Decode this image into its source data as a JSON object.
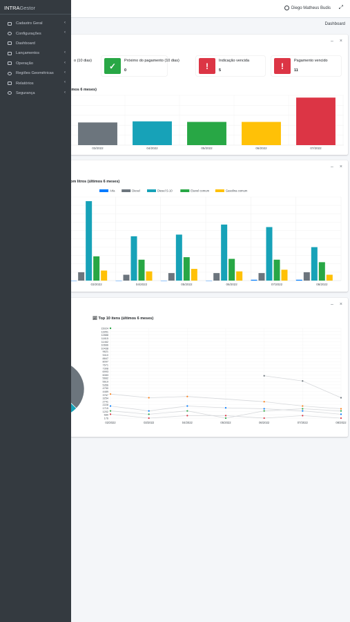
{
  "brand": {
    "bold": "INTRA",
    "light": "Gestor"
  },
  "header": {
    "user_name": "Diego Matheus Budis",
    "breadcrumb": "Dashboard"
  },
  "sidebar": {
    "items": [
      {
        "label": "Cadastro Geral",
        "caret": true
      },
      {
        "label": "Configurações",
        "caret": true
      },
      {
        "label": "Dashboard",
        "caret": false
      },
      {
        "label": "Lançamentos",
        "caret": true
      },
      {
        "label": "Operação",
        "caret": true
      },
      {
        "label": "Regiões Geométricas",
        "caret": true
      },
      {
        "label": "Relatórios",
        "caret": true
      },
      {
        "label": "Segurança",
        "caret": true
      }
    ]
  },
  "cards": {
    "collapse_icon": "–",
    "close_icon": "×"
  },
  "info_boxes": [
    {
      "label": "o (10 dias)",
      "value": "",
      "color": "#ffffff"
    },
    {
      "label": "Próximo do pagamento (10 dias)",
      "value": "0",
      "icon": "check-icon",
      "color": "#28a745"
    },
    {
      "label": "Indicação vencida",
      "value": "5",
      "icon": "exclamation-icon",
      "color": "#dc3545"
    },
    {
      "label": "Pagamento vencido",
      "value": "11",
      "icon": "exclamation-icon",
      "color": "#dc3545"
    }
  ],
  "chart_data": [
    {
      "type": "bar",
      "title": "imos 6 meses)",
      "categories": [
        "03/2022",
        "04/2022",
        "05/2022",
        "06/2022",
        "07/2022"
      ],
      "values": [
        41,
        43,
        42,
        42,
        86
      ],
      "colors": [
        "#6c757d",
        "#17a2b8",
        "#28a745",
        "#ffc107",
        "#dc3545"
      ],
      "ylim": [
        0,
        90
      ]
    },
    {
      "type": "bar",
      "title": "om litros (últimos 6 meses)",
      "categories": [
        "03/2022",
        "04/2022",
        "05/2022",
        "06/2022",
        "07/2022",
        "08/2022"
      ],
      "series": [
        {
          "name": "Arla",
          "color": "#007bff",
          "values": [
            0,
            0,
            0,
            0,
            1,
            1
          ]
        },
        {
          "name": "Diesel",
          "color": "#6c757d",
          "values": [
            10,
            7,
            9,
            9,
            9,
            10
          ]
        },
        {
          "name": "Diesel S-10",
          "color": "#17a2b8",
          "values": [
            95,
            53,
            55,
            67,
            64,
            40
          ]
        },
        {
          "name": "Etanol comum",
          "color": "#28a745",
          "values": [
            29,
            25,
            28,
            26,
            25,
            22
          ]
        },
        {
          "name": "Gasolina comum",
          "color": "#ffc107",
          "values": [
            12,
            11,
            14,
            11,
            13,
            7
          ]
        }
      ],
      "ylim": [
        0,
        100
      ]
    },
    {
      "type": "pie",
      "title": "",
      "slices": [
        {
          "color": "#6c757d",
          "value": 35
        },
        {
          "color": "#17a2b8",
          "value": 20
        },
        {
          "color": "#28a745",
          "value": 10
        },
        {
          "color": "#e9ecef",
          "value": 35
        }
      ]
    },
    {
      "type": "line",
      "title": "Top 10 itens (últimos 6 meses)",
      "categories": [
        "02/2022",
        "03/2022",
        "04/2022",
        "05/2022",
        "06/2022",
        "07/2022",
        "08/2022"
      ],
      "yticks": [
        "15024",
        "13951",
        "12888",
        "11815",
        "11462",
        "10666",
        "10438",
        "9621",
        "9410",
        "8847",
        "8097",
        "7671",
        "7308",
        "6993",
        "6083",
        "5662",
        "5619",
        "5356",
        "4750",
        "4489",
        "3767",
        "3254",
        "2741",
        "2228",
        "1715",
        "1202",
        "689",
        "176"
      ],
      "ylim": [
        176,
        15024
      ],
      "series": [
        {
          "name": "",
          "color": "#6c757d",
          "values": [
            null,
            null,
            null,
            null,
            5619,
            4750,
            2228
          ]
        },
        {
          "name": "",
          "color": "#fd7e14",
          "values": [
            2741,
            2228,
            2400,
            null,
            1715,
            1202,
            900
          ]
        },
        {
          "name": "",
          "color": "#007bff",
          "values": [
            1202,
            689,
            1202,
            1000,
            900,
            689,
            400
          ]
        },
        {
          "name": "",
          "color": "#28a745",
          "values": [
            689,
            400,
            689,
            176,
            689,
            900,
            689
          ]
        },
        {
          "name": "",
          "color": "#dc3545",
          "values": [
            400,
            176,
            300,
            300,
            176,
            300,
            176
          ]
        }
      ],
      "top_point": {
        "color": "#28a745",
        "value": 15024
      }
    }
  ]
}
